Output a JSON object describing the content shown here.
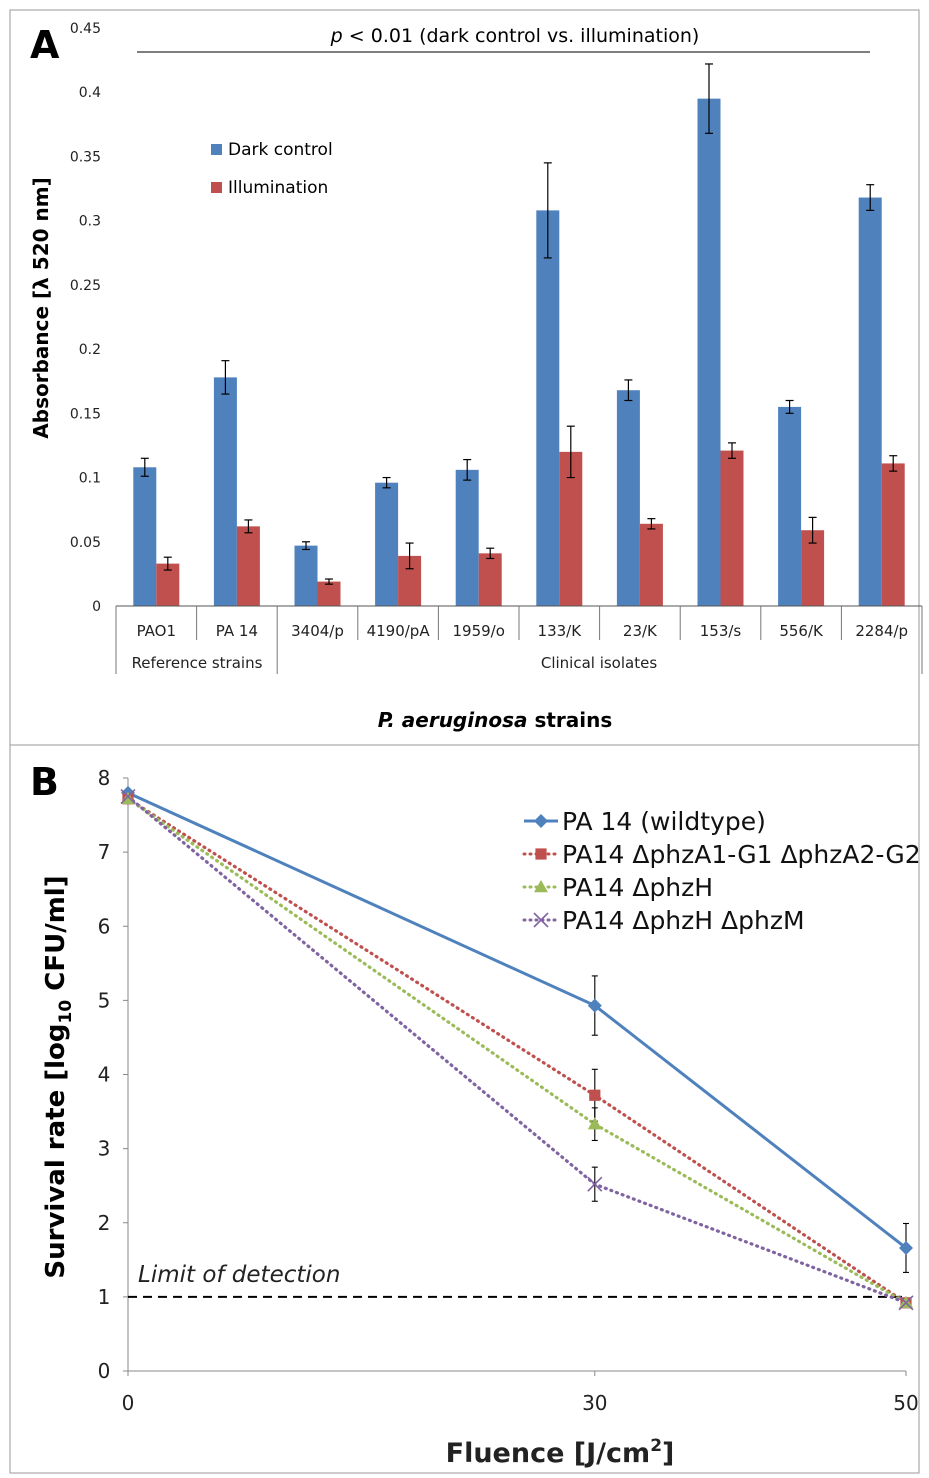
{
  "panel_a": {
    "letter": "A",
    "significance_prefix": "p",
    "significance_rest": " < 0.01 (dark control vs. illumination)",
    "group_labels": [
      "Reference strains",
      "Clinical isolates"
    ],
    "x_title_italic": "P. aeruginosa",
    "x_title_rest": " strains",
    "chart_data": {
      "type": "bar",
      "categories": [
        "PAO1",
        "PA 14",
        "3404/p",
        "4190/pA",
        "1959/o",
        "133/K",
        "23/K",
        "153/s",
        "556/K",
        "2284/p"
      ],
      "series": [
        {
          "name": "Dark control",
          "color": "#4F81BD",
          "values": [
            0.108,
            0.178,
            0.047,
            0.096,
            0.106,
            0.308,
            0.168,
            0.395,
            0.155,
            0.318
          ],
          "errors": [
            0.007,
            0.013,
            0.003,
            0.004,
            0.008,
            0.037,
            0.008,
            0.027,
            0.005,
            0.01
          ]
        },
        {
          "name": "Illumination",
          "color": "#C0504D",
          "values": [
            0.033,
            0.062,
            0.019,
            0.039,
            0.041,
            0.12,
            0.064,
            0.121,
            0.059,
            0.111
          ],
          "errors": [
            0.005,
            0.005,
            0.002,
            0.01,
            0.004,
            0.02,
            0.004,
            0.006,
            0.01,
            0.006
          ]
        }
      ],
      "ylabel": "Absorbance [λ 520 nm]",
      "ylim": [
        0,
        0.45
      ],
      "yticks": [
        "0",
        "0.05",
        "0.1",
        "0.15",
        "0.2",
        "0.25",
        "0.3",
        "0.35",
        "0.4",
        "0.45"
      ],
      "legend_position": "top-left"
    }
  },
  "panel_b": {
    "letter": "B",
    "lod_label": "Limit of detection",
    "chart_data": {
      "type": "line",
      "x": [
        0,
        30,
        50
      ],
      "xticks": [
        "0",
        "30",
        "50"
      ],
      "xlabel_main": "Fluence [J/cm",
      "xlabel_sup": "2",
      "xlabel_end": "]",
      "ylabel_main": "Survival rate [log",
      "ylabel_sub": "10",
      "ylabel_end": " CFU/ml]",
      "ylim": [
        0,
        8
      ],
      "yticks": [
        "0",
        "1",
        "2",
        "3",
        "4",
        "5",
        "6",
        "7",
        "8"
      ],
      "limit_of_detection": 1,
      "legend_position": "top-right",
      "series": [
        {
          "name": "PA 14 (wildtype)",
          "color": "#4F81BD",
          "marker": "diamond",
          "dash": "solid",
          "values": [
            7.8,
            4.93,
            1.66
          ],
          "errors": [
            0,
            0.4,
            0.33
          ]
        },
        {
          "name": "PA14 ΔphzA1-G1 ΔphzA2-G2",
          "color": "#C0504D",
          "marker": "square",
          "dash": "dotted",
          "values": [
            7.72,
            3.72,
            0.92
          ],
          "errors": [
            0,
            0.35,
            0
          ]
        },
        {
          "name": "PA14 ΔphzH",
          "color": "#9BBB59",
          "marker": "triangle",
          "dash": "dotted",
          "values": [
            7.72,
            3.33,
            0.92
          ],
          "errors": [
            0,
            0.22,
            0
          ]
        },
        {
          "name": "PA14 ΔphzH ΔphzM",
          "color": "#8064A2",
          "marker": "x",
          "dash": "dotted",
          "values": [
            7.75,
            2.52,
            0.92
          ],
          "errors": [
            0,
            0.23,
            0
          ]
        }
      ]
    }
  }
}
